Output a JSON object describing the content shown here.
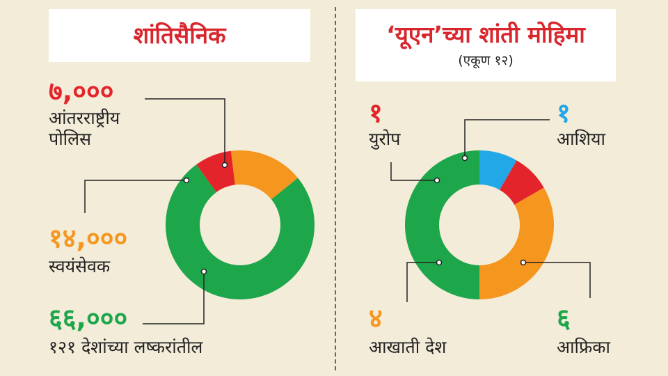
{
  "colors": {
    "red": "#e3252b",
    "orange": "#f5961f",
    "green": "#1ea64a",
    "blue": "#22a8e6",
    "title": "#d8262d"
  },
  "left": {
    "title": "शांतिसैनिक",
    "items": [
      {
        "value": "७,०००",
        "label": "आंतरराष्ट्रीय\nपोलिस"
      },
      {
        "value": "१४,०००",
        "label": "स्वयंसेवक"
      },
      {
        "value": "६६,०००",
        "label": "१२१ देशांच्या लष्करांतील"
      }
    ]
  },
  "right": {
    "title": "‘यूएन’च्या शांती मोहिमा",
    "subtitle": "(एकूण १२)",
    "items": [
      {
        "value": "१",
        "label": "युरोप"
      },
      {
        "value": "१",
        "label": "आशिया"
      },
      {
        "value": "४",
        "label": "आखाती देश"
      },
      {
        "value": "६",
        "label": "आफ्रिका"
      }
    ]
  },
  "chart_data": [
    {
      "type": "pie",
      "title": "शांतिसैनिक",
      "categories": [
        "आंतरराष्ट्रीय पोलिस",
        "स्वयंसेवक",
        "१२१ देशांच्या लष्करांतील"
      ],
      "values": [
        7000,
        14000,
        66000
      ],
      "colors": [
        "#e3252b",
        "#f5961f",
        "#1ea64a"
      ]
    },
    {
      "type": "pie",
      "title": "‘यूएन’च्या शांती मोहिमा",
      "subtitle": "(एकूण १२)",
      "categories": [
        "आशिया",
        "युरोप",
        "आखाती देश",
        "आफ्रिका"
      ],
      "values": [
        1,
        1,
        4,
        6
      ],
      "colors": [
        "#22a8e6",
        "#e3252b",
        "#f5961f",
        "#1ea64a"
      ]
    }
  ]
}
